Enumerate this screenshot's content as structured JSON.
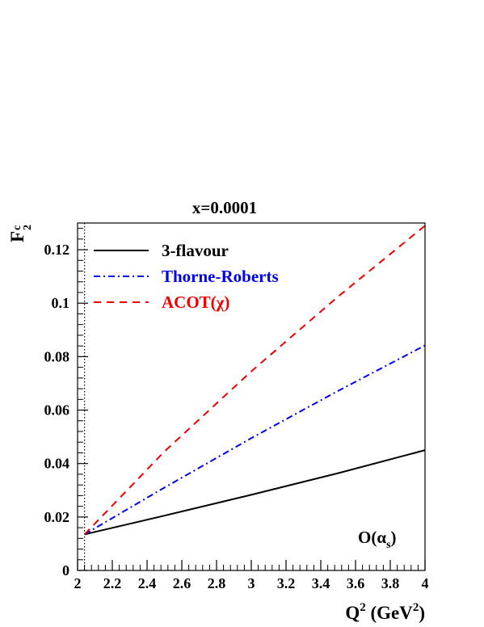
{
  "chart_data": {
    "type": "line",
    "title": "x=0.0001",
    "xlabel": {
      "main": "Q",
      "sup": "2",
      "unit_open": " (GeV",
      "unit_sup": "2",
      "unit_close": ")"
    },
    "ylabel": {
      "main": "F",
      "sup": "c",
      "sub": "2"
    },
    "xlim": [
      2,
      4
    ],
    "ylim": [
      0,
      0.13
    ],
    "x_ticks": [
      2,
      2.2,
      2.4,
      2.6,
      2.8,
      3,
      3.2,
      3.4,
      3.6,
      3.8,
      4
    ],
    "x_tick_labels": [
      "2",
      "2.2",
      "2.4",
      "2.6",
      "2.8",
      "3",
      "3.2",
      "3.4",
      "3.6",
      "3.8",
      "4"
    ],
    "y_ticks": [
      0,
      0.02,
      0.04,
      0.06,
      0.08,
      0.1,
      0.12
    ],
    "y_tick_labels": [
      "0",
      "0.02",
      "0.04",
      "0.06",
      "0.08",
      "0.1",
      "0.12"
    ],
    "threshold_x": 2.04,
    "annotation": {
      "main": "O(α",
      "sub": "s",
      "close": ")"
    },
    "legend_position": "top-left",
    "grid": false,
    "series": [
      {
        "name": "3-flavour",
        "color": "#000000",
        "style": "solid",
        "x": [
          2.04,
          2.5,
          3,
          3.5,
          4
        ],
        "y": [
          0.0135,
          0.0205,
          0.0283,
          0.0364,
          0.045
        ]
      },
      {
        "name": "Thorne-Roberts",
        "color": "#0000ee",
        "style": "dashdot",
        "x": [
          2.04,
          2.5,
          3,
          3.5,
          4
        ],
        "y": [
          0.0135,
          0.031,
          0.0495,
          0.0672,
          0.0842
        ]
      },
      {
        "name": "ACOT(χ)",
        "color": "#ee0000",
        "style": "dashed",
        "x": [
          2.04,
          2.5,
          3,
          3.5,
          4
        ],
        "y": [
          0.0135,
          0.0445,
          0.0745,
          0.1025,
          0.129
        ]
      }
    ]
  }
}
